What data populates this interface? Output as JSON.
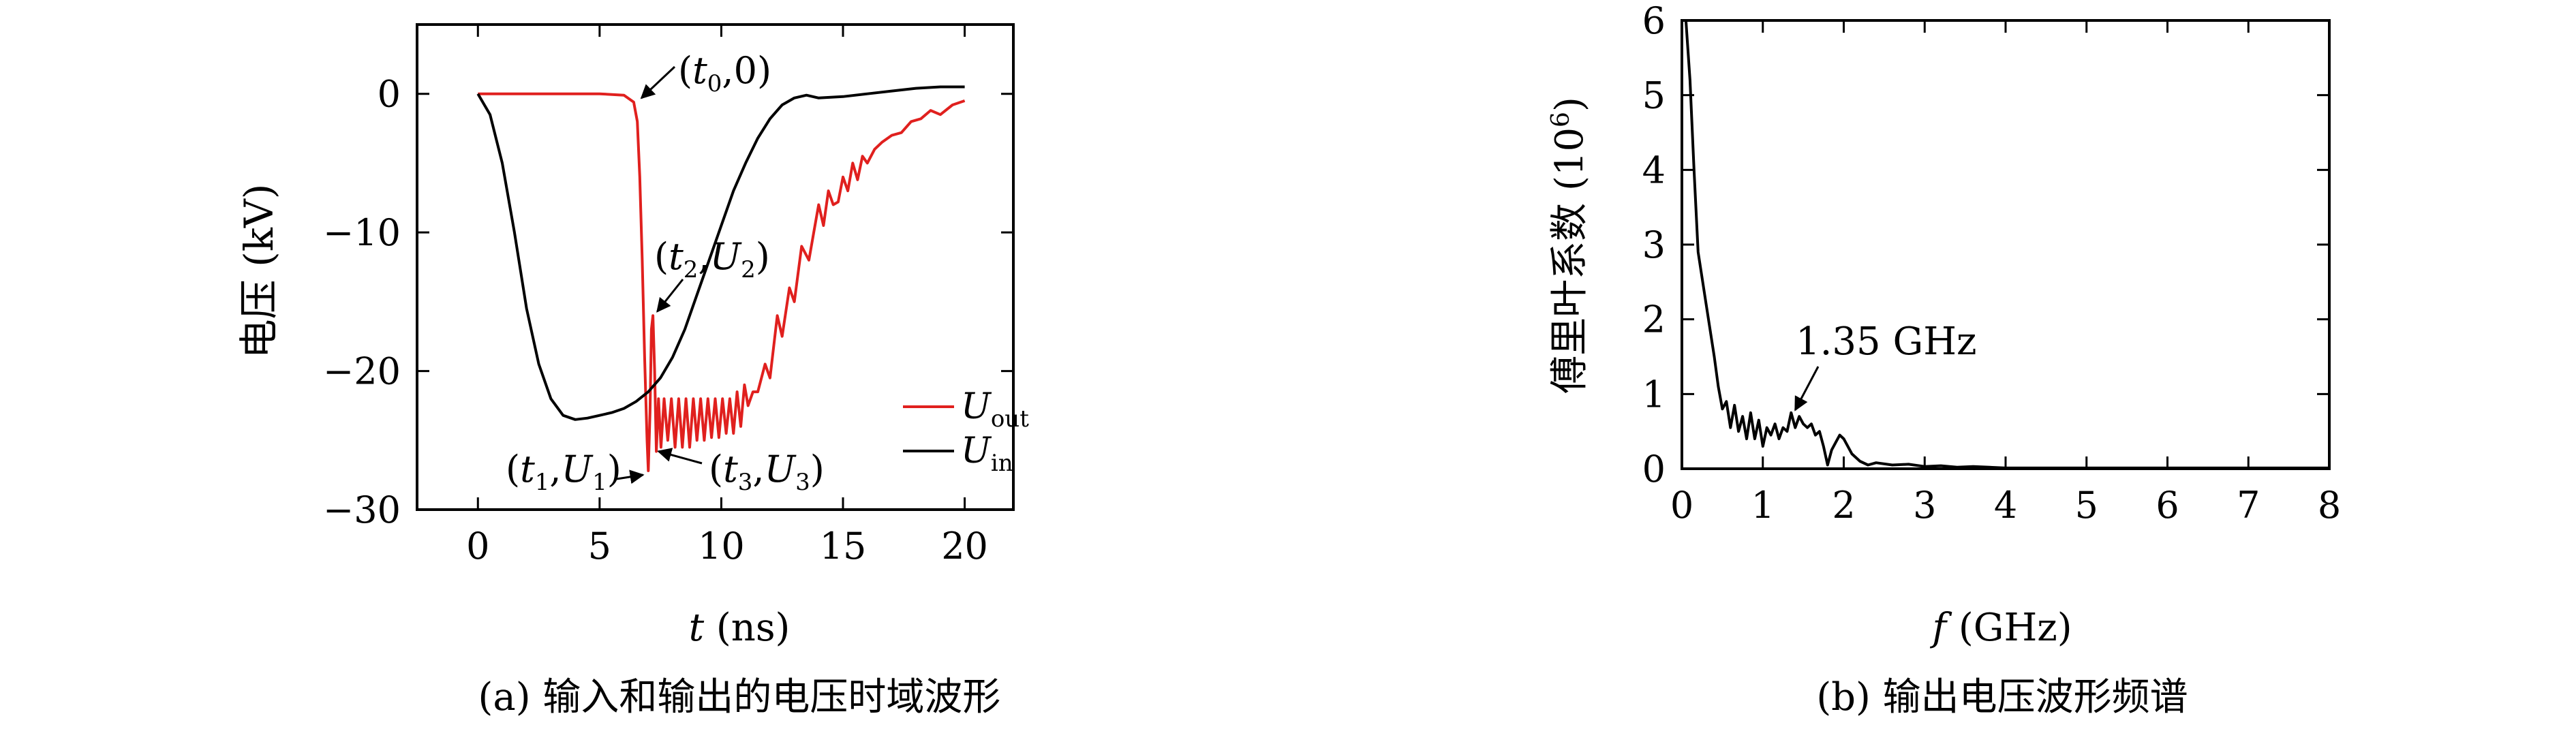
{
  "panels": {
    "a": {
      "caption": "(a) 输入和输出的电压时域波形"
    },
    "b": {
      "caption": "(b) 输出电压波形频谱"
    }
  },
  "colors": {
    "out": "#e0201e",
    "in": "#000000"
  },
  "chart_data": [
    {
      "type": "line",
      "ylabel_text": "电压 (kV)",
      "xlabel_var": "t",
      "xlabel_unit": "(ns)",
      "xlim": [
        -2.5,
        22
      ],
      "ylim": [
        -30,
        5
      ],
      "xticks": [
        0,
        5,
        10,
        15,
        20
      ],
      "yticks": [
        0,
        -10,
        -20,
        -30
      ],
      "xtick_labels": [
        "0",
        "5",
        "10",
        "15",
        "20"
      ],
      "ytick_labels": [
        "0",
        "−10",
        "−20",
        "−30"
      ],
      "legend_position": "right, lower half",
      "series": [
        {
          "name": "U_out",
          "name_main": "U",
          "name_sub": "out",
          "color": "#e0201e",
          "x": [
            0,
            1,
            2,
            3,
            4,
            5,
            6,
            6.4,
            6.55,
            6.65,
            6.75,
            6.85,
            6.95,
            7.0,
            7.07,
            7.13,
            7.19,
            7.26,
            7.33,
            7.42,
            7.52,
            7.65,
            7.8,
            7.95,
            8.1,
            8.25,
            8.4,
            8.55,
            8.7,
            8.85,
            9.0,
            9.15,
            9.3,
            9.45,
            9.6,
            9.75,
            9.9,
            10.05,
            10.2,
            10.35,
            10.5,
            10.65,
            10.8,
            10.95,
            11.1,
            11.3,
            11.5,
            11.8,
            12.0,
            12.3,
            12.5,
            12.8,
            13.0,
            13.3,
            13.6,
            13.8,
            14.0,
            14.2,
            14.4,
            14.6,
            14.8,
            15.0,
            15.2,
            15.4,
            15.6,
            15.8,
            16.0,
            16.3,
            16.6,
            17.0,
            17.4,
            17.8,
            18.2,
            18.6,
            19.0,
            19.5,
            20.0
          ],
          "y": [
            0,
            0,
            0,
            0,
            0,
            0,
            -0.1,
            -0.6,
            -2,
            -6,
            -12,
            -19,
            -25,
            -27.2,
            -23,
            -17,
            -16,
            -20,
            -25.8,
            -22,
            -25.5,
            -22,
            -25,
            -22,
            -25.5,
            -22,
            -25.5,
            -22,
            -25.5,
            -22,
            -25,
            -22,
            -25,
            -22,
            -24.8,
            -22,
            -24.8,
            -22,
            -24.5,
            -22,
            -24.5,
            -21.5,
            -24,
            -21,
            -22.5,
            -21.5,
            -21.5,
            -19.5,
            -20.5,
            -16,
            -17.5,
            -14,
            -15,
            -11,
            -12,
            -10,
            -8,
            -9.5,
            -7,
            -8,
            -7.8,
            -6,
            -7,
            -5,
            -6.2,
            -4.5,
            -5,
            -4,
            -3.5,
            -3,
            -2.8,
            -2,
            -1.8,
            -1.2,
            -1.5,
            -0.8,
            -0.5
          ]
        },
        {
          "name": "U_in",
          "name_main": "U",
          "name_sub": "in",
          "color": "#000000",
          "x": [
            0,
            0.5,
            1,
            1.5,
            2,
            2.5,
            3,
            3.5,
            4,
            4.5,
            5,
            5.5,
            6,
            6.5,
            7,
            7.5,
            8,
            8.5,
            9,
            9.5,
            10,
            10.5,
            11,
            11.5,
            12,
            12.5,
            13,
            13.5,
            14,
            15,
            16,
            17,
            18,
            19,
            20
          ],
          "y": [
            0,
            -1.5,
            -5,
            -10,
            -15.5,
            -19.5,
            -22,
            -23.2,
            -23.5,
            -23.4,
            -23.2,
            -23,
            -22.7,
            -22.2,
            -21.5,
            -20.5,
            -19,
            -17,
            -14.5,
            -12,
            -9.5,
            -7,
            -5,
            -3.2,
            -1.8,
            -0.8,
            -0.3,
            -0.1,
            -0.3,
            -0.2,
            0,
            0.2,
            0.4,
            0.5,
            0.5
          ]
        }
      ],
      "annotations": [
        {
          "id": "t0",
          "var1": "t",
          "sub1": "0",
          "var2": "",
          "sub2": "",
          "plain2": "0",
          "point": [
            6.55,
            -0.6
          ]
        },
        {
          "id": "t2",
          "var1": "t",
          "sub1": "2",
          "var2": "U",
          "sub2": "2",
          "plain2": "",
          "point": [
            7.2,
            -16
          ]
        },
        {
          "id": "t1",
          "var1": "t",
          "sub1": "1",
          "var2": "U",
          "sub2": "1",
          "plain2": "",
          "point": [
            6.95,
            -27.2
          ]
        },
        {
          "id": "t3",
          "var1": "t",
          "sub1": "3",
          "var2": "U",
          "sub2": "3",
          "plain2": "",
          "point": [
            7.25,
            -25.5
          ]
        }
      ]
    },
    {
      "type": "line",
      "ylabel_text": "傅里叶系数 (10",
      "ylabel_sup": "6",
      "ylabel_close": ")",
      "xlabel_var": "f",
      "xlabel_unit": " (GHz)",
      "xlim": [
        0,
        8
      ],
      "ylim": [
        0,
        6
      ],
      "xticks": [
        0,
        1,
        2,
        3,
        4,
        5,
        6,
        7,
        8
      ],
      "yticks": [
        0,
        1,
        2,
        3,
        4,
        5,
        6
      ],
      "xtick_labels": [
        "0",
        "1",
        "2",
        "3",
        "4",
        "5",
        "6",
        "7",
        "8"
      ],
      "ytick_labels": [
        "0",
        "1",
        "2",
        "3",
        "4",
        "5",
        "6"
      ],
      "annotation": {
        "text": "1.35 GHz",
        "point": [
          1.35,
          0.75
        ]
      },
      "series": [
        {
          "color": "#000000",
          "x": [
            0.05,
            0.1,
            0.15,
            0.2,
            0.3,
            0.4,
            0.45,
            0.5,
            0.55,
            0.6,
            0.65,
            0.7,
            0.75,
            0.8,
            0.85,
            0.9,
            0.95,
            1.0,
            1.05,
            1.1,
            1.15,
            1.2,
            1.25,
            1.3,
            1.35,
            1.4,
            1.45,
            1.5,
            1.55,
            1.6,
            1.65,
            1.7,
            1.75,
            1.8,
            1.85,
            1.9,
            1.95,
            2.0,
            2.1,
            2.2,
            2.3,
            2.4,
            2.6,
            2.8,
            3.0,
            3.2,
            3.4,
            3.6,
            3.8,
            4.0,
            4.5,
            5,
            6,
            7,
            8
          ],
          "y": [
            6,
            5.2,
            4.0,
            2.9,
            2.2,
            1.5,
            1.1,
            0.8,
            0.9,
            0.55,
            0.85,
            0.5,
            0.7,
            0.4,
            0.75,
            0.4,
            0.65,
            0.3,
            0.55,
            0.45,
            0.6,
            0.4,
            0.55,
            0.5,
            0.75,
            0.55,
            0.7,
            0.6,
            0.55,
            0.6,
            0.45,
            0.5,
            0.3,
            0.05,
            0.25,
            0.35,
            0.45,
            0.4,
            0.2,
            0.1,
            0.05,
            0.08,
            0.05,
            0.06,
            0.03,
            0.04,
            0.02,
            0.03,
            0.02,
            0.01,
            0.01,
            0.01,
            0.01,
            0.01,
            0.01
          ]
        }
      ]
    }
  ]
}
